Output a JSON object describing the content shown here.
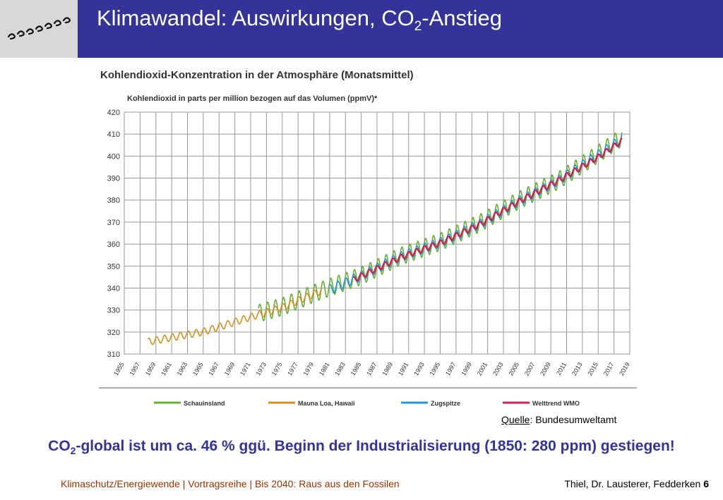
{
  "header": {
    "title_main": "Klimawandel: Auswirkungen, CO",
    "title_sub": "2",
    "title_rest": "-Anstieg",
    "bar_color": "#333399"
  },
  "chart_data": {
    "type": "line",
    "title": "Kohlendioxid-Konzentration in der Atmosphäre (Monatsmittel)",
    "ylabel": "Kohlendioxid in parts per million bezogen auf das Volumen (ppmV)*",
    "xlabel": "",
    "ylim": [
      310,
      420
    ],
    "xlim": [
      1955,
      2019
    ],
    "yticks": [
      "310",
      "320",
      "330",
      "340",
      "350",
      "360",
      "370",
      "380",
      "390",
      "400",
      "410",
      "420"
    ],
    "xticks": [
      "1955",
      "1957",
      "1959",
      "1961",
      "1963",
      "1965",
      "1967",
      "1969",
      "1971",
      "1973",
      "1975",
      "1977",
      "1979",
      "1981",
      "1983",
      "1985",
      "1987",
      "1989",
      "1991",
      "1993",
      "1995",
      "1997",
      "1999",
      "2001",
      "2003",
      "2005",
      "2007",
      "2009",
      "2011",
      "2013",
      "2015",
      "2017",
      "2019"
    ],
    "grid": true,
    "legend_position": "bottom",
    "series": [
      {
        "name": "Schauinsland",
        "color": "#66b032",
        "x": [
          1972,
          1975,
          1980,
          1985,
          1990,
          1995,
          2000,
          2005,
          2010,
          2015,
          2018
        ],
        "y": [
          328.5,
          331.5,
          339,
          345.5,
          354.5,
          361,
          369.5,
          380,
          389,
          401,
          408.5
        ],
        "amplitude": 8
      },
      {
        "name": "Mauna Loa, Hawaii",
        "color": "#d4901e",
        "x": [
          1958,
          1960,
          1965,
          1970,
          1975,
          1980
        ],
        "y": [
          315.5,
          316.9,
          320.1,
          325.7,
          331.2,
          338.8
        ],
        "amplitude": 3.2
      },
      {
        "name": "Zugspitze",
        "color": "#2196d3",
        "x": [
          1981,
          1985,
          1990,
          1995,
          2000,
          2005,
          2010,
          2015,
          2018
        ],
        "y": [
          339.2,
          345.5,
          354.2,
          360.6,
          369,
          379.5,
          389,
          400.5,
          407.5
        ],
        "amplitude": 4.5
      },
      {
        "name": "Welttrend WMO",
        "color": "#cc2255",
        "x": [
          1984,
          1990,
          1995,
          2000,
          2005,
          2010,
          2015,
          2018
        ],
        "y": [
          343.8,
          354,
          360.5,
          369,
          379.5,
          389,
          399.5,
          407
        ],
        "amplitude": 2.5
      }
    ]
  },
  "source": {
    "link_text": "Quelle",
    "rest": ": Bundesumweltamt"
  },
  "statement": {
    "part1": "CO",
    "sub": "2",
    "part2": "-global ist um ca. 46 % ggü. Beginn der Industrialisierung (1850: 280 ppm) gestiegen!",
    "color": "#333399"
  },
  "footer": {
    "left": "Klimaschutz/Energiewende | Vortragsreihe | Bis 2040: Raus aus den Fossilen",
    "authors": "Thiel, Dr. Lausterer, Fedderken",
    "page": "6"
  }
}
